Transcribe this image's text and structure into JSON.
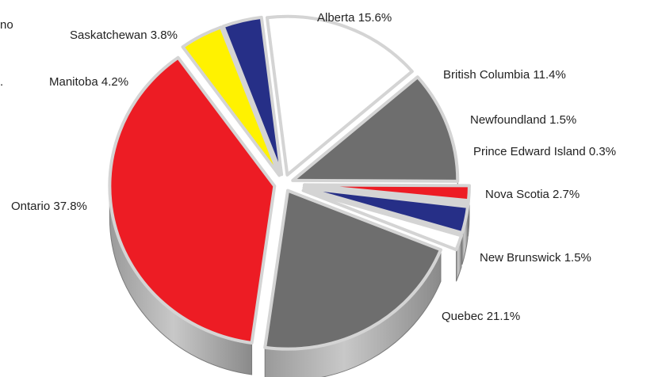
{
  "fragments": [
    "no",
    "."
  ],
  "chart_data": {
    "type": "pie",
    "title": "",
    "exploded": true,
    "style": "3d",
    "slices": [
      {
        "name": "Alberta",
        "label": "Alberta 15.6%",
        "value": 15.6,
        "color": "#ffffff"
      },
      {
        "name": "British Columbia",
        "label": "British Columbia 11.4%",
        "value": 11.4,
        "color": "#6e6e6e"
      },
      {
        "name": "Newfoundland",
        "label": "Newfoundland 1.5%",
        "value": 1.5,
        "color": "#ed1c24"
      },
      {
        "name": "Prince Edward Island",
        "label": "Prince Edward Island 0.3%",
        "value": 0.3,
        "color": "#fff200"
      },
      {
        "name": "Nova Scotia",
        "label": "Nova Scotia 2.7%",
        "value": 2.7,
        "color": "#262f87"
      },
      {
        "name": "New Brunswick",
        "label": "New Brunswick 1.5%",
        "value": 1.5,
        "color": "#ffffff"
      },
      {
        "name": "Quebec",
        "label": "Quebec 21.1%",
        "value": 21.1,
        "color": "#6e6e6e"
      },
      {
        "name": "Ontario",
        "label": "Ontario 37.8%",
        "value": 37.8,
        "color": "#ed1c24"
      },
      {
        "name": "Manitoba",
        "label": "Manitoba 4.2%",
        "value": 4.2,
        "color": "#fff200"
      },
      {
        "name": "Saskatchewan",
        "label": "Saskatchewan 3.8%",
        "value": 3.8,
        "color": "#262f87"
      }
    ]
  }
}
